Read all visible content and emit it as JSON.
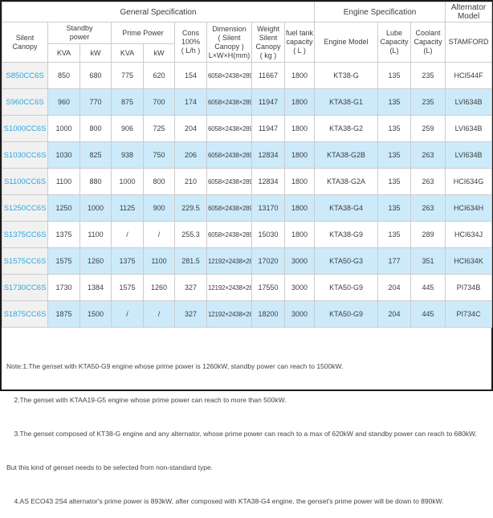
{
  "colors": {
    "accent_blue_text": "#2aa7e0",
    "row_highlight": "#cdeafb",
    "model_column_bg": "#f1f1f1",
    "border": "#cccccc",
    "data_text": "#3d3d3d",
    "frame": "#1c1c1c"
  },
  "table": {
    "header": {
      "general_spec": "General Specification",
      "engine_spec": "Engine Specification",
      "alternator_model": "Alternator\nModel",
      "silent_canopy": "Silent Canopy",
      "standby_power": "Standby\npower",
      "prime_power": "Prime Power",
      "kva1": "KVA",
      "kw1": "kW",
      "kva2": "KVA",
      "kw2": "kW",
      "cons": "Cons\n100%\n( L/h )",
      "dimension": "Dimension\n( Silent Canopy )\nL×W×H(mm)",
      "weight": "Weight\nSilent\nCanopy\n( kg )",
      "fuel_tank": "fuel tank\ncapacity\n( L )",
      "engine_model": "Engine Model",
      "lube": "Lube\nCapacity\n(L)",
      "coolant": "Coolant\nCapacity\n(L)",
      "stamford": "STAMFORD"
    },
    "rows": [
      {
        "model": "S850CC6S",
        "standby_kva": "850",
        "standby_kw": "680",
        "prime_kva": "775",
        "prime_kw": "620",
        "cons": "154",
        "dimension": "6058×2438×2896",
        "weight": "11667",
        "fuel_tank": "1800",
        "engine": "KT38-G",
        "lube": "135",
        "coolant": "235",
        "alternator": "HCI544F"
      },
      {
        "model": "S960CC6S",
        "standby_kva": "960",
        "standby_kw": "770",
        "prime_kva": "875",
        "prime_kw": "700",
        "cons": "174",
        "dimension": "6058×2438×2896",
        "weight": "11947",
        "fuel_tank": "1800",
        "engine": "KTA38-G1",
        "lube": "135",
        "coolant": "235",
        "alternator": "LVI634B"
      },
      {
        "model": "S1000CC6S",
        "standby_kva": "1000",
        "standby_kw": "800",
        "prime_kva": "906",
        "prime_kw": "725",
        "cons": "204",
        "dimension": "6058×2438×2896",
        "weight": "11947",
        "fuel_tank": "1800",
        "engine": "KTA38-G2",
        "lube": "135",
        "coolant": "259",
        "alternator": "LVI634B"
      },
      {
        "model": "S1030CC6S",
        "standby_kva": "1030",
        "standby_kw": "825",
        "prime_kva": "938",
        "prime_kw": "750",
        "cons": "206",
        "dimension": "6058×2438×2896",
        "weight": "12834",
        "fuel_tank": "1800",
        "engine": "KTA38-G2B",
        "lube": "135",
        "coolant": "263",
        "alternator": "LVI634B"
      },
      {
        "model": "S1100CC6S",
        "standby_kva": "1100",
        "standby_kw": "880",
        "prime_kva": "1000",
        "prime_kw": "800",
        "cons": "210",
        "dimension": "6058×2438×2896",
        "weight": "12834",
        "fuel_tank": "1800",
        "engine": "KTA38-G2A",
        "lube": "135",
        "coolant": "263",
        "alternator": "HCI634G"
      },
      {
        "model": "S1250CC6S",
        "standby_kva": "1250",
        "standby_kw": "1000",
        "prime_kva": "1125",
        "prime_kw": "900",
        "cons": "229.5",
        "dimension": "6058×2438×2896",
        "weight": "13170",
        "fuel_tank": "1800",
        "engine": "KTA38-G4",
        "lube": "135",
        "coolant": "263",
        "alternator": "HCI634H"
      },
      {
        "model": "S1375CC6S",
        "standby_kva": "1375",
        "standby_kw": "1100",
        "prime_kva": "/",
        "prime_kw": "/",
        "cons": "255.3",
        "dimension": "6058×2438×2896",
        "weight": "15030",
        "fuel_tank": "1800",
        "engine": "KTA38-G9",
        "lube": "135",
        "coolant": "289",
        "alternator": "HCI634J"
      },
      {
        "model": "S1575CC6S",
        "standby_kva": "1575",
        "standby_kw": "1260",
        "prime_kva": "1375",
        "prime_kw": "1100",
        "cons": "281.5",
        "dimension": "12192×2438×2896",
        "weight": "17020",
        "fuel_tank": "3000",
        "engine": "KTA50-G3",
        "lube": "177",
        "coolant": "351",
        "alternator": "HCI634K"
      },
      {
        "model": "S1730CC6S",
        "standby_kva": "1730",
        "standby_kw": "1384",
        "prime_kva": "1575",
        "prime_kw": "1260",
        "cons": "327",
        "dimension": "12192×2438×2896",
        "weight": "17550",
        "fuel_tank": "3000",
        "engine": "KTA50-G9",
        "lube": "204",
        "coolant": "445",
        "alternator": "PI734B"
      },
      {
        "model": "S1875CC6S",
        "standby_kva": "1875",
        "standby_kw": "1500",
        "prime_kva": "/",
        "prime_kw": "/",
        "cons": "327",
        "dimension": "12192×2438×2896",
        "weight": "18200",
        "fuel_tank": "3000",
        "engine": "KTA50-G9",
        "lube": "204",
        "coolant": "445",
        "alternator": "PI734C"
      }
    ]
  },
  "notes": [
    "Note:1.The genset with KTA50-G9 engine whose prime power is 1260kW, standby power can reach to 1500kW.",
    "    2.The genset with KTAA19-G5 engine whose prime power can reach to more than 500kW.",
    "    3.The genset composed of KT38-G engine and any alternator, whose prime power can reach to a max of 620kW and standby power can reach to 680kW.",
    "But this kind of genset needs to be selected from non-standard type.",
    "    4.AS ECO43 2S4 alternator's prime power is 893kW, after composed with KTA38-G4 engine, the genset's prime power will be down to 890kW."
  ]
}
